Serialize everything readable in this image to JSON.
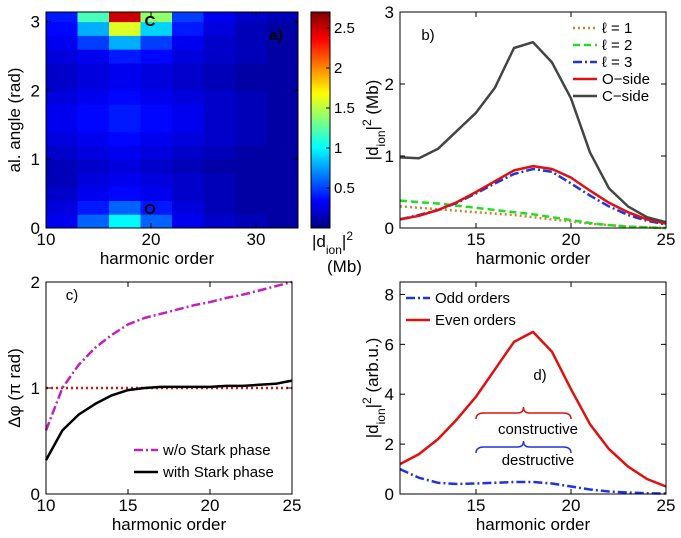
{
  "chart_data": [
    {
      "type": "heatmap",
      "xlabel": "harmonic order",
      "ylabel": "al. angle (rad)",
      "xlim": [
        10,
        34
      ],
      "ylim": [
        0,
        3.14
      ],
      "xticks": [
        10,
        20,
        30
      ],
      "yticks": [
        0,
        1,
        2,
        3
      ],
      "x": [
        11.5,
        14.5,
        17.5,
        20.5,
        23.5,
        26.5,
        29.5,
        32.5
      ],
      "y": [
        0.1,
        0.3,
        0.5,
        0.7,
        0.9,
        1.1,
        1.3,
        1.5,
        1.7,
        1.9,
        2.1,
        2.3,
        2.5,
        2.7,
        2.9,
        3.1
      ],
      "z": [
        [
          0.3,
          0.6,
          1.0,
          0.6,
          0.3,
          0.2,
          0.15,
          0.1
        ],
        [
          0.25,
          0.4,
          0.6,
          0.4,
          0.25,
          0.15,
          0.1,
          0.1
        ],
        [
          0.2,
          0.3,
          0.35,
          0.3,
          0.2,
          0.15,
          0.1,
          0.1
        ],
        [
          0.15,
          0.25,
          0.3,
          0.25,
          0.2,
          0.15,
          0.1,
          0.1
        ],
        [
          0.15,
          0.2,
          0.25,
          0.2,
          0.15,
          0.1,
          0.1,
          0.1
        ],
        [
          0.2,
          0.25,
          0.3,
          0.25,
          0.2,
          0.15,
          0.1,
          0.1
        ],
        [
          0.25,
          0.3,
          0.35,
          0.3,
          0.25,
          0.2,
          0.15,
          0.1
        ],
        [
          0.3,
          0.35,
          0.4,
          0.35,
          0.3,
          0.2,
          0.15,
          0.1
        ],
        [
          0.3,
          0.35,
          0.4,
          0.35,
          0.3,
          0.2,
          0.15,
          0.1
        ],
        [
          0.25,
          0.3,
          0.35,
          0.3,
          0.25,
          0.2,
          0.15,
          0.1
        ],
        [
          0.2,
          0.25,
          0.3,
          0.25,
          0.2,
          0.15,
          0.1,
          0.1
        ],
        [
          0.2,
          0.25,
          0.3,
          0.25,
          0.2,
          0.15,
          0.1,
          0.1
        ],
        [
          0.25,
          0.3,
          0.4,
          0.35,
          0.25,
          0.2,
          0.15,
          0.1
        ],
        [
          0.3,
          0.5,
          0.8,
          0.5,
          0.3,
          0.2,
          0.15,
          0.1
        ],
        [
          0.35,
          0.8,
          1.6,
          0.9,
          0.4,
          0.25,
          0.15,
          0.1
        ],
        [
          0.4,
          1.2,
          2.5,
          1.4,
          0.5,
          0.3,
          0.2,
          0.15
        ]
      ],
      "colormap": "jet",
      "clim": [
        0,
        2.7
      ],
      "cticks": [
        0.5,
        1,
        1.5,
        2,
        2.5
      ],
      "clabel": [
        "|d",
        "ion",
        "|",
        "2"
      ],
      "cunit": "(Mb)",
      "annotations": [
        "C",
        "O",
        "a)"
      ]
    },
    {
      "type": "line",
      "xlabel": "harmonic order",
      "ylabel": [
        "|d",
        "ion",
        "|",
        "2",
        " (Mb)"
      ],
      "xlim": [
        11,
        25
      ],
      "ylim": [
        0,
        3
      ],
      "xticks": [
        15,
        20,
        25
      ],
      "yticks": [
        0,
        1,
        2,
        3
      ],
      "legend": "upper right",
      "x": [
        11,
        12,
        13,
        14,
        15,
        16,
        17,
        18,
        19,
        20,
        21,
        22,
        23,
        24,
        25
      ],
      "series": [
        {
          "name": "ℓ = 1",
          "color": "#c8872a",
          "linestyle": "dotted",
          "values": [
            0.3,
            0.28,
            0.26,
            0.24,
            0.22,
            0.2,
            0.18,
            0.15,
            0.12,
            0.09,
            0.06,
            0.04,
            0.02,
            0.01,
            0.0
          ]
        },
        {
          "name": "ℓ = 2",
          "color": "#22dd22",
          "linestyle": "dashed",
          "values": [
            0.38,
            0.36,
            0.34,
            0.31,
            0.28,
            0.25,
            0.22,
            0.19,
            0.15,
            0.11,
            0.07,
            0.04,
            0.02,
            0.01,
            0.0
          ]
        },
        {
          "name": "ℓ = 3",
          "color": "#2233dd",
          "linestyle": "dashdot",
          "values": [
            0.12,
            0.18,
            0.25,
            0.35,
            0.48,
            0.62,
            0.75,
            0.82,
            0.78,
            0.62,
            0.45,
            0.3,
            0.18,
            0.1,
            0.05
          ]
        },
        {
          "name": "O−side",
          "color": "#e01010",
          "linestyle": "solid",
          "values": [
            0.12,
            0.17,
            0.25,
            0.36,
            0.5,
            0.65,
            0.8,
            0.86,
            0.82,
            0.7,
            0.52,
            0.35,
            0.22,
            0.12,
            0.06
          ]
        },
        {
          "name": "C−side",
          "color": "#444444",
          "linestyle": "solid",
          "values": [
            0.98,
            0.97,
            1.1,
            1.35,
            1.6,
            1.95,
            2.5,
            2.58,
            2.3,
            1.8,
            1.05,
            0.55,
            0.3,
            0.15,
            0.08
          ]
        }
      ],
      "annotations": [
        "b)"
      ]
    },
    {
      "type": "line",
      "xlabel": "harmonic order",
      "ylabel": "Δφ (π rad)",
      "xlim": [
        10,
        25
      ],
      "ylim": [
        0,
        2
      ],
      "xticks": [
        10,
        15,
        20,
        25
      ],
      "yticks": [
        0,
        1,
        2
      ],
      "legend": "lower right",
      "x": [
        10,
        11,
        12,
        13,
        14,
        15,
        16,
        17,
        18,
        19,
        20,
        21,
        22,
        23,
        24,
        25
      ],
      "series": [
        {
          "color": "#e01010",
          "linestyle": "dotted",
          "values": [
            1,
            1,
            1,
            1,
            1,
            1,
            1,
            1,
            1,
            1,
            1,
            1,
            1,
            1,
            1,
            1
          ]
        },
        {
          "name": "w/o Stark phase",
          "color": "#c020c0",
          "linestyle": "dashdot",
          "values": [
            0.6,
            1.0,
            1.22,
            1.38,
            1.5,
            1.6,
            1.66,
            1.7,
            1.74,
            1.78,
            1.81,
            1.85,
            1.88,
            1.92,
            1.96,
            2.0
          ]
        },
        {
          "name": "with Stark phase",
          "color": "#000000",
          "linestyle": "solid",
          "values": [
            0.32,
            0.6,
            0.75,
            0.85,
            0.93,
            0.98,
            1.0,
            1.01,
            1.01,
            1.01,
            1.01,
            1.02,
            1.02,
            1.03,
            1.04,
            1.07
          ]
        }
      ],
      "annotations": [
        "c)"
      ]
    },
    {
      "type": "line",
      "xlabel": "harmonic order",
      "ylabel": [
        "|d",
        "ion",
        "|",
        "2",
        " (arb.u.)"
      ],
      "xlim": [
        11,
        25
      ],
      "ylim": [
        0,
        8.5
      ],
      "xticks": [
        15,
        20,
        25
      ],
      "yticks": [
        0,
        2,
        4,
        6,
        8
      ],
      "legend": "upper left",
      "x": [
        11,
        12,
        13,
        14,
        15,
        16,
        17,
        18,
        19,
        20,
        21,
        22,
        23,
        24,
        25
      ],
      "series": [
        {
          "name": "Odd orders",
          "color": "#2233dd",
          "linestyle": "dashdot",
          "values": [
            1.0,
            0.65,
            0.45,
            0.4,
            0.42,
            0.45,
            0.48,
            0.48,
            0.42,
            0.3,
            0.18,
            0.1,
            0.06,
            0.03,
            0.02
          ]
        },
        {
          "name": "Even orders",
          "color": "#e01010",
          "linestyle": "solid",
          "values": [
            1.2,
            1.6,
            2.2,
            3.0,
            3.9,
            5.0,
            6.1,
            6.5,
            5.7,
            4.2,
            2.8,
            1.8,
            1.1,
            0.6,
            0.3
          ]
        }
      ],
      "annotations": [
        "d)",
        "constructive",
        "destructive"
      ]
    }
  ]
}
